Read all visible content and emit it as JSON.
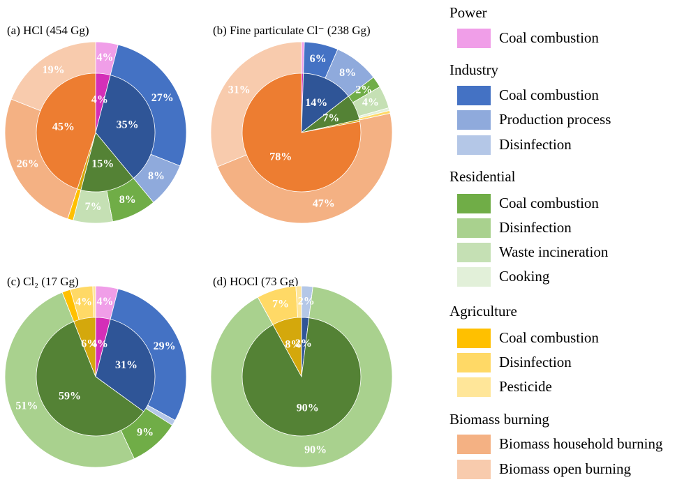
{
  "legend": [
    {
      "group": "Power",
      "color": "#d42fb8",
      "items": [
        {
          "name": "Coal combustion",
          "color": "#f09ee8"
        }
      ]
    },
    {
      "group": "Industry",
      "color": "#2f5597",
      "items": [
        {
          "name": "Coal combustion",
          "color": "#4472c4"
        },
        {
          "name": "Production process",
          "color": "#8faadc"
        },
        {
          "name": "Disinfection",
          "color": "#b4c7e7"
        }
      ]
    },
    {
      "group": "Residential",
      "color": "#548235",
      "items": [
        {
          "name": "Coal combustion",
          "color": "#70ad47"
        },
        {
          "name": "Disinfection",
          "color": "#a9d18e"
        },
        {
          "name": "Waste incineration",
          "color": "#c5e0b4"
        },
        {
          "name": "Cooking",
          "color": "#e2f0d9"
        }
      ]
    },
    {
      "group": "Agriculture",
      "color": "#d4a80c",
      "items": [
        {
          "name": "Coal combustion",
          "color": "#ffc000"
        },
        {
          "name": "Disinfection",
          "color": "#ffd966"
        },
        {
          "name": "Pesticide",
          "color": "#ffe699"
        }
      ]
    },
    {
      "group": "Biomass burning",
      "color": "#ed7d31",
      "items": [
        {
          "name": "Biomass household burning",
          "color": "#f4b183"
        },
        {
          "name": "Biomass open burning",
          "color": "#f8cbad"
        }
      ]
    }
  ],
  "chart_data": [
    {
      "type": "pie",
      "title": "(a) HCl (454 Gg)",
      "inner": {
        "values": [
          4,
          35,
          15,
          1,
          45
        ],
        "value_labels": [
          "4%",
          "35%",
          "15%",
          null,
          "45%"
        ]
      },
      "outer": {
        "values": [
          4,
          27,
          8,
          0,
          8,
          0,
          7,
          0,
          1,
          0,
          0,
          26,
          19
        ],
        "value_labels": [
          "4%",
          "27%",
          "8%",
          null,
          "8%",
          null,
          "7%",
          null,
          null,
          null,
          null,
          "26%",
          "19%"
        ]
      }
    },
    {
      "type": "pie",
      "title": "(b) Fine particulate Cl⁻ (238 Gg)",
      "inner": {
        "values": [
          0.5,
          14,
          7,
          0.5,
          78
        ],
        "value_labels": [
          null,
          "14%",
          "7%",
          null,
          "78%"
        ]
      },
      "outer": {
        "values": [
          0.5,
          6,
          8,
          0,
          2,
          0,
          4,
          0.5,
          0,
          0.5,
          0,
          47,
          31
        ],
        "value_labels": [
          null,
          "6%",
          "8%",
          null,
          "2%",
          null,
          "4%",
          null,
          null,
          null,
          null,
          "47%",
          "31%"
        ]
      }
    },
    {
      "type": "pie",
      "title": "(c) Cl₂ (17 Gg)",
      "inner": {
        "values": [
          4,
          31,
          59,
          6,
          0
        ],
        "value_labels": [
          "4%",
          "31%",
          "59%",
          "6%",
          null
        ]
      },
      "outer": {
        "values": [
          4,
          29,
          0,
          1,
          9,
          51,
          0,
          0,
          1.5,
          4,
          0.5,
          0,
          0
        ],
        "value_labels": [
          "4%",
          "29%",
          null,
          null,
          "9%",
          "51%",
          null,
          null,
          null,
          "4%",
          null,
          null,
          null
        ]
      }
    },
    {
      "type": "pie",
      "title": "(d) HOCl (73 Gg)",
      "inner": {
        "values": [
          0,
          2,
          90,
          8,
          0
        ],
        "value_labels": [
          null,
          "2%",
          "90%",
          "8%",
          null
        ]
      },
      "outer": {
        "values": [
          0,
          0,
          0,
          2,
          0,
          90,
          0,
          0,
          0,
          7,
          1,
          0,
          0
        ],
        "value_labels": [
          null,
          null,
          null,
          "2%",
          null,
          "90%",
          null,
          null,
          null,
          "7%",
          null,
          null,
          null
        ]
      }
    }
  ]
}
